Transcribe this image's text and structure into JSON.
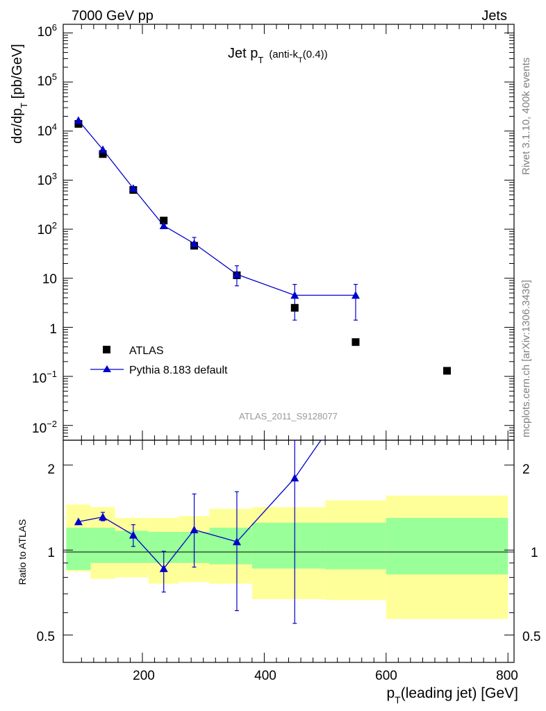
{
  "header": {
    "left": "7000 GeV pp",
    "right": "Jets"
  },
  "side": {
    "top": "Rivet 3.1.10,  400k events",
    "bottom": "mcplots.cern.ch [arXiv:1306.3436]"
  },
  "chart_data": [
    {
      "type": "scatter",
      "title_main": "Jet p",
      "title_main_sub": "T",
      "title_paren_a": "(anti-k",
      "title_paren_sub": "T",
      "title_paren_b": "(0.4))",
      "ylabel_a": "dσ/dp",
      "ylabel_sub": "T",
      "ylabel_b": " [pb/GeV]",
      "yscale": "log",
      "ylim": [
        0.005,
        1500000
      ],
      "xlim": [
        70,
        810
      ],
      "ytick_labels": {
        "e6_base": "10",
        "e6_exp": "6",
        "e5_base": "10",
        "e5_exp": "5",
        "e4_base": "10",
        "e4_exp": "4",
        "e3_base": "10",
        "e3_exp": "3",
        "e2_base": "10",
        "e2_exp": "2",
        "e1": "10",
        "e0": "1",
        "em1_base": "10",
        "em1_exp": "−1",
        "em2_base": "10",
        "em2_exp": "−2"
      },
      "watermark": "ATLAS_2011_S9128077",
      "legend": {
        "data": "ATLAS",
        "mc": "Pythia 8.183 default",
        "position": "bottom-left"
      },
      "series": [
        {
          "name": "ATLAS",
          "x": [
            95,
            135,
            185,
            235,
            285,
            355,
            450,
            550,
            700
          ],
          "y": [
            14000,
            3400,
            630,
            150,
            46,
            11.5,
            2.5,
            0.5,
            0.13
          ]
        },
        {
          "name": "Pythia 8.183 default",
          "x": [
            95,
            135,
            185,
            235,
            285,
            355,
            450,
            550
          ],
          "y": [
            16500,
            4200,
            680,
            118,
            51,
            12,
            4.5,
            4.5
          ],
          "err_lo": [
            0,
            0,
            0,
            0,
            42,
            7,
            1.4,
            1.4
          ],
          "err_hi": [
            0,
            0,
            0,
            0,
            68,
            18,
            7.5,
            7.5
          ]
        }
      ]
    },
    {
      "type": "line",
      "ylabel": "Ratio to ATLAS",
      "yscale": "log",
      "ylim": [
        0.4,
        2.45
      ],
      "xlim": [
        70,
        810
      ],
      "xlabel_a": "p",
      "xlabel_sub": "T",
      "xlabel_b": "(leading jet) [GeV]",
      "ytick_labels": {
        "t05": "0.5",
        "t1": "1",
        "t2": "2"
      },
      "xtick_labels": {
        "t200": "200",
        "t400": "400",
        "t600": "600",
        "t800": "800"
      },
      "bands": {
        "edges": [
          75,
          115,
          155,
          210,
          260,
          310,
          380,
          500,
          600,
          800
        ],
        "inner_lo": [
          0.85,
          0.9,
          0.9,
          0.9,
          0.9,
          0.89,
          0.86,
          0.855,
          0.82
        ],
        "inner_hi": [
          1.2,
          1.2,
          1.17,
          1.16,
          1.16,
          1.2,
          1.25,
          1.25,
          1.3
        ],
        "outer_lo": [
          0.84,
          0.79,
          0.8,
          0.76,
          0.77,
          0.76,
          0.67,
          0.665,
          0.57
        ],
        "outer_hi": [
          1.45,
          1.42,
          1.3,
          1.3,
          1.32,
          1.4,
          1.42,
          1.5,
          1.56
        ],
        "inner_color": "#99ff99",
        "outer_color": "#ffff99"
      },
      "series": [
        {
          "name": "Pythia 8.183 default / ATLAS",
          "x": [
            95,
            135,
            185,
            235,
            285,
            355,
            450,
            493
          ],
          "y": [
            1.26,
            1.31,
            1.13,
            0.86,
            1.18,
            1.07,
            1.8,
            2.45
          ],
          "err_lo": [
            0,
            1.27,
            1.03,
            0.71,
            0.87,
            0.61,
            0.55,
            0
          ],
          "err_hi": [
            0,
            1.36,
            1.23,
            0.99,
            1.58,
            1.61,
            2.45,
            0
          ]
        }
      ]
    }
  ],
  "colors": {
    "mc": "#0000cc",
    "data": "#000000",
    "side_text": "#808080",
    "watermark": "#999999"
  }
}
